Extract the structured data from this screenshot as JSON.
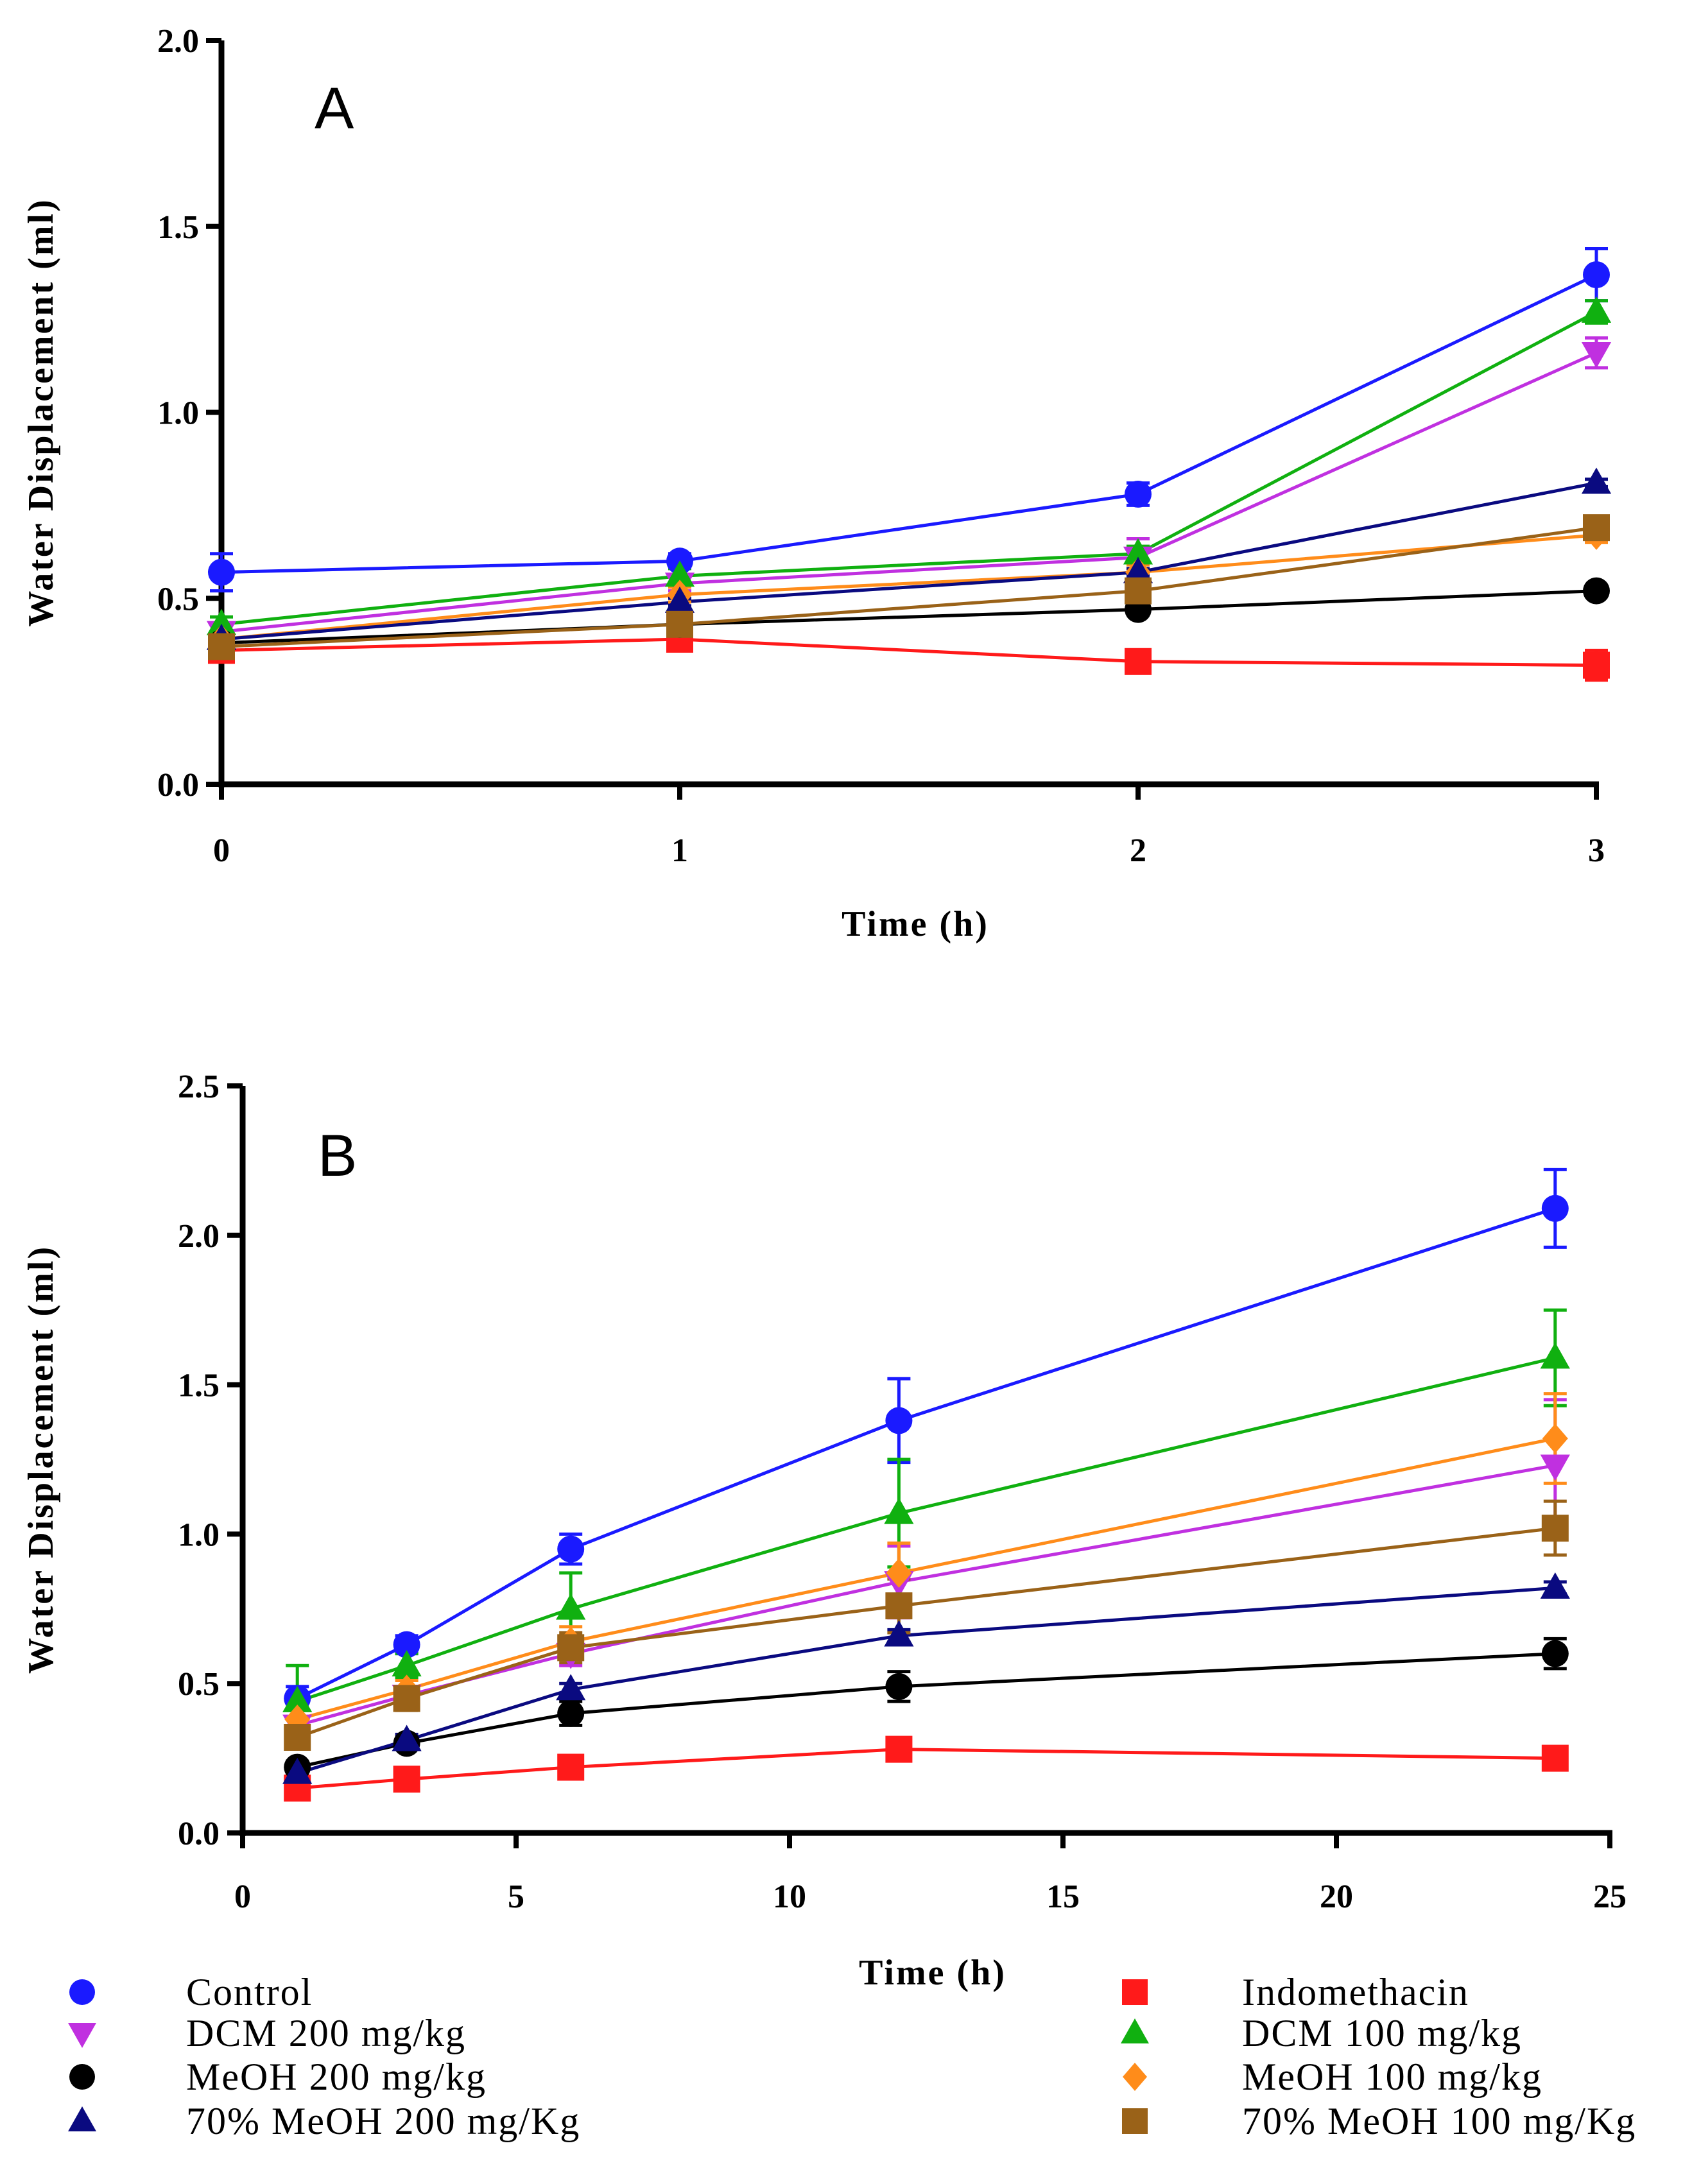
{
  "colors": {
    "Control": "#1a1aff",
    "Indomethacin": "#ff1a1a",
    "DCM 200 mg/kg": "#c030e0",
    "DCM 100 mg/kg": "#10b010",
    "MeOH 200 mg/kg": "#000000",
    "MeOH 100 mg/kg": "#ff8c1a",
    "70% MeOH 200 mg/Kg": "#0a0a80",
    "70% MeOH 100 mg/Kg": "#9a6218"
  },
  "legend": {
    "items": [
      {
        "name": "Control",
        "marker": "circle",
        "label": "Control"
      },
      {
        "name": "Indomethacin",
        "marker": "square",
        "label": "Indomethacin"
      },
      {
        "name": "DCM 200 mg/kg",
        "marker": "triangle-down",
        "label": "DCM 200 mg/kg"
      },
      {
        "name": "DCM 100 mg/kg",
        "marker": "triangle-up",
        "label": "DCM 100 mg/kg"
      },
      {
        "name": "MeOH 200 mg/kg",
        "marker": "circle",
        "label": "MeOH 200 mg/kg"
      },
      {
        "name": "MeOH 100 mg/kg",
        "marker": "diamond",
        "label": "MeOH 100 mg/kg"
      },
      {
        "name": "70% MeOH 200 mg/Kg",
        "marker": "triangle-up",
        "label": "70% MeOH 200 mg/Kg"
      },
      {
        "name": "70% MeOH 100 mg/Kg",
        "marker": "square",
        "label": "70% MeOH 100 mg/Kg"
      }
    ]
  },
  "chart_data": [
    {
      "type": "line",
      "panel": "A",
      "xlabel": "Time (h)",
      "ylabel": "Water Displacement (ml)",
      "x": [
        0,
        1,
        2,
        3
      ],
      "xlim": [
        0,
        3
      ],
      "ylim": [
        0,
        2.0
      ],
      "xticks": [
        0,
        1,
        2,
        3
      ],
      "xtick_labels": [
        "0",
        "1",
        "2",
        "3"
      ],
      "yticks": [
        0,
        0.5,
        1.0,
        1.5,
        2.0
      ],
      "ytick_labels": [
        "0.0",
        "0.5",
        "1.0",
        "1.5",
        "2.0"
      ],
      "series": [
        {
          "name": "Control",
          "marker": "circle",
          "values": [
            0.57,
            0.6,
            0.78,
            1.37
          ],
          "errors": [
            0.05,
            0.02,
            0.03,
            0.07
          ]
        },
        {
          "name": "Indomethacin",
          "marker": "square",
          "values": [
            0.36,
            0.39,
            0.33,
            0.32
          ],
          "errors": [
            0.02,
            0.02,
            0.02,
            0.04
          ]
        },
        {
          "name": "DCM 200 mg/kg",
          "marker": "triangle-down",
          "values": [
            0.41,
            0.54,
            0.61,
            1.16
          ],
          "errors": [
            0.02,
            0.02,
            0.05,
            0.04
          ]
        },
        {
          "name": "DCM 100 mg/kg",
          "marker": "triangle-up",
          "values": [
            0.43,
            0.56,
            0.62,
            1.27
          ],
          "errors": [
            0.02,
            0.02,
            0.02,
            0.03
          ]
        },
        {
          "name": "MeOH 200 mg/kg",
          "marker": "circle",
          "values": [
            0.38,
            0.43,
            0.47,
            0.52
          ],
          "errors": [
            0.01,
            0.01,
            0.01,
            0.01
          ]
        },
        {
          "name": "MeOH 100 mg/kg",
          "marker": "diamond",
          "values": [
            0.39,
            0.51,
            0.57,
            0.67
          ],
          "errors": [
            0.01,
            0.02,
            0.02,
            0.02
          ]
        },
        {
          "name": "70% MeOH 200 mg/Kg",
          "marker": "triangle-up",
          "values": [
            0.39,
            0.49,
            0.57,
            0.81
          ],
          "errors": [
            0.01,
            0.01,
            0.01,
            0.01
          ]
        },
        {
          "name": "70% MeOH 100 mg/Kg",
          "marker": "square",
          "values": [
            0.37,
            0.43,
            0.52,
            0.69
          ],
          "errors": [
            0.01,
            0.01,
            0.02,
            0.02
          ]
        }
      ]
    },
    {
      "type": "line",
      "panel": "B",
      "xlabel": "Time (h)",
      "ylabel": "Water Displacement (ml)",
      "x": [
        1,
        3,
        6,
        12,
        24
      ],
      "xlim": [
        0,
        25
      ],
      "ylim": [
        0,
        2.5
      ],
      "xticks": [
        0,
        5,
        10,
        15,
        20,
        25
      ],
      "xtick_labels": [
        "0",
        "5",
        "10",
        "15",
        "20",
        "25"
      ],
      "yticks": [
        0,
        0.5,
        1.0,
        1.5,
        2.0,
        2.5
      ],
      "ytick_labels": [
        "0.0",
        "0.5",
        "1.0",
        "1.5",
        "2.0",
        "2.5"
      ],
      "series": [
        {
          "name": "Control",
          "marker": "circle",
          "values": [
            0.45,
            0.63,
            0.95,
            1.38,
            2.09
          ],
          "errors": [
            0.04,
            0.03,
            0.05,
            0.14,
            0.13
          ]
        },
        {
          "name": "Indomethacin",
          "marker": "square",
          "values": [
            0.15,
            0.18,
            0.22,
            0.28,
            0.25
          ],
          "errors": [
            0.02,
            0.02,
            0.03,
            0.03,
            0.03
          ]
        },
        {
          "name": "DCM 200 mg/kg",
          "marker": "triangle-down",
          "values": [
            0.36,
            0.46,
            0.6,
            0.84,
            1.23
          ],
          "errors": [
            0.03,
            0.03,
            0.04,
            0.12,
            0.22
          ]
        },
        {
          "name": "DCM 100 mg/kg",
          "marker": "triangle-up",
          "values": [
            0.44,
            0.56,
            0.75,
            1.07,
            1.59
          ],
          "errors": [
            0.12,
            0.04,
            0.12,
            0.18,
            0.16
          ]
        },
        {
          "name": "MeOH 200 mg/kg",
          "marker": "circle",
          "values": [
            0.22,
            0.3,
            0.4,
            0.49,
            0.6
          ],
          "errors": [
            0.02,
            0.02,
            0.04,
            0.05,
            0.05
          ]
        },
        {
          "name": "MeOH 100 mg/kg",
          "marker": "diamond",
          "values": [
            0.38,
            0.48,
            0.64,
            0.87,
            1.32
          ],
          "errors": [
            0.03,
            0.03,
            0.05,
            0.1,
            0.15
          ]
        },
        {
          "name": "70% MeOH 200 mg/Kg",
          "marker": "triangle-up",
          "values": [
            0.2,
            0.31,
            0.48,
            0.66,
            0.82
          ],
          "errors": [
            0.02,
            0.02,
            0.02,
            0.02,
            0.02
          ]
        },
        {
          "name": "70% MeOH 100 mg/Kg",
          "marker": "square",
          "values": [
            0.32,
            0.45,
            0.62,
            0.76,
            1.02
          ],
          "errors": [
            0.02,
            0.04,
            0.05,
            0.09,
            0.09
          ]
        }
      ]
    }
  ]
}
